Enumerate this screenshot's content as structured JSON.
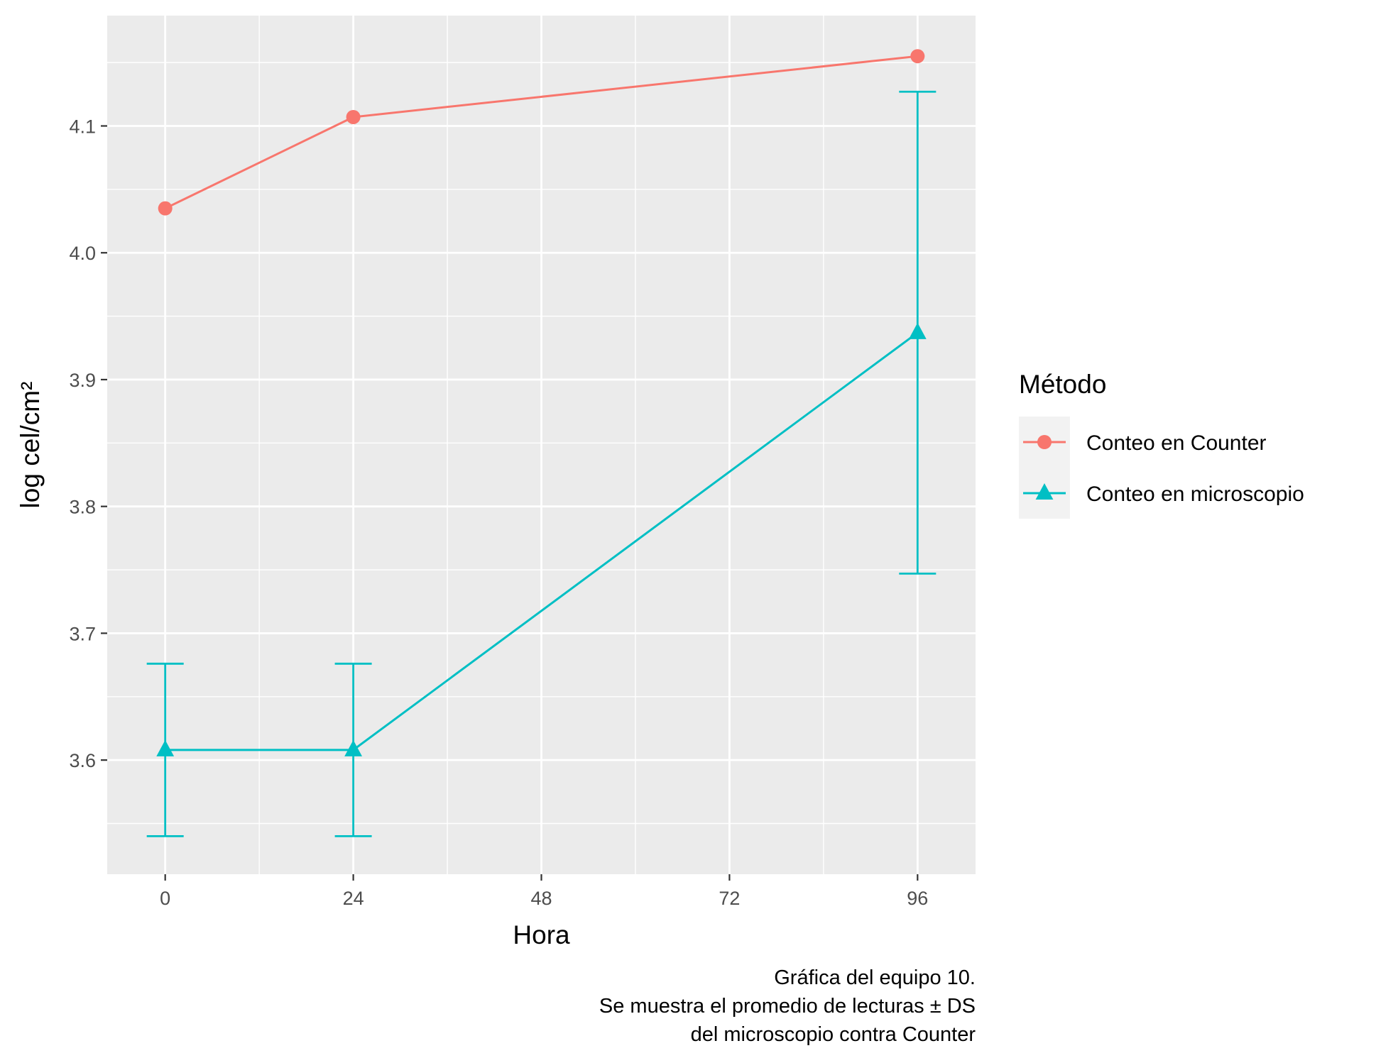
{
  "chart_data": {
    "type": "line",
    "xlabel": "Hora",
    "ylabel": "log cel/cm²",
    "x_ticks": [
      0,
      24,
      48,
      72,
      96
    ],
    "y_ticks": [
      3.6,
      3.7,
      3.8,
      3.9,
      4.0,
      4.1
    ],
    "x_tick_labels": [
      "0",
      "24",
      "48",
      "72",
      "96"
    ],
    "y_tick_labels": [
      "3.6",
      "3.7",
      "3.8",
      "3.9",
      "4.0",
      "4.1"
    ],
    "xlim": [
      -7.4,
      103.4
    ],
    "ylim": [
      3.51,
      4.187
    ],
    "grid": true,
    "legend": {
      "title": "Método",
      "position": "right"
    },
    "series": [
      {
        "name": "Conteo en Counter",
        "color": "#F8766D",
        "marker": "circle",
        "x": [
          0,
          24,
          96
        ],
        "y": [
          4.035,
          4.107,
          4.155
        ]
      },
      {
        "name": "Conteo en microscopio",
        "color": "#00BFC4",
        "marker": "triangle",
        "x": [
          0,
          24,
          96
        ],
        "y": [
          3.608,
          3.608,
          3.937
        ],
        "error_low": [
          3.54,
          3.54,
          3.747
        ],
        "error_high": [
          3.676,
          3.676,
          4.127
        ]
      }
    ],
    "caption": [
      "Gráfica del equipo 10.",
      "Se muestra el promedio de lecturas ± DS",
      "del microscopio contra Counter"
    ]
  }
}
